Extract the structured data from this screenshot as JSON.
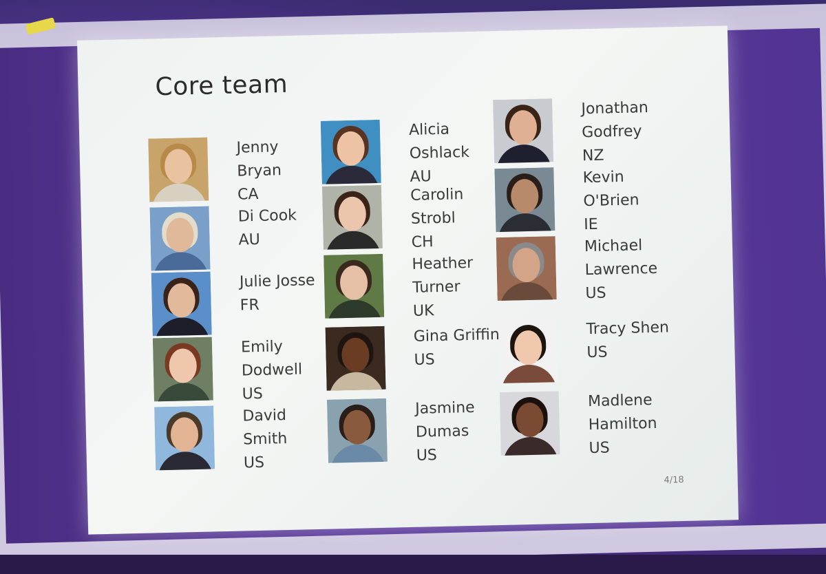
{
  "slide": {
    "title": "Core team",
    "page": "4/18"
  },
  "colors": {
    "slide_bg": "#eef3f2",
    "room": "#4b2f8a",
    "accent": "#e6d84a",
    "text": "#3a3a3a"
  },
  "members": [
    {
      "lines": [
        "Jenny",
        "Bryan",
        "CA"
      ],
      "photo": {
        "bg": "#c9a46a",
        "hair": "#b88a4a",
        "skin": "#e9c2a0",
        "shirt": "#d8d0c0"
      }
    },
    {
      "lines": [
        "Di Cook",
        "AU"
      ],
      "photo": {
        "bg": "#7a9fc8",
        "hair": "#e2dccb",
        "skin": "#e0b89a",
        "shirt": "#4a6a9a"
      }
    },
    {
      "lines": [
        "Julie Josse",
        "FR"
      ],
      "photo": {
        "bg": "#5a8fc9",
        "hair": "#3a2418",
        "skin": "#e3b99c",
        "shirt": "#1e1e2a"
      }
    },
    {
      "lines": [
        "Emily",
        "Dodwell",
        "US"
      ],
      "photo": {
        "bg": "#6f7f64",
        "hair": "#7a3a22",
        "skin": "#efc7ac",
        "shirt": "#3a4a3a"
      }
    },
    {
      "lines": [
        "David",
        "Smith",
        "US"
      ],
      "photo": {
        "bg": "#8fb8dc",
        "hair": "#4a3a2a",
        "skin": "#e2b494",
        "shirt": "#2a2a34"
      }
    },
    {
      "lines": [
        "Alicia",
        "Oshlack",
        "AU"
      ],
      "photo": {
        "bg": "#3f8fc2",
        "hair": "#5a3422",
        "skin": "#eec2a4",
        "shirt": "#2a2a3a"
      }
    },
    {
      "lines": [
        "Carolin",
        "Strobl",
        "CH"
      ],
      "photo": {
        "bg": "#b0b4a8",
        "hair": "#3a2418",
        "skin": "#ecc6ac",
        "shirt": "#2a2a2a"
      }
    },
    {
      "lines": [
        "Heather",
        "Turner",
        "UK"
      ],
      "photo": {
        "bg": "#5f7a44",
        "hair": "#3a2a1e",
        "skin": "#e6c0a6",
        "shirt": "#2e3a2a"
      }
    },
    {
      "lines": [
        "Gina Griffin",
        "US"
      ],
      "photo": {
        "bg": "#3a2a20",
        "hair": "#1e1410",
        "skin": "#6a3c24",
        "shirt": "#c9b8a0"
      }
    },
    {
      "lines": [
        "Jasmine",
        "Dumas",
        "US"
      ],
      "photo": {
        "bg": "#8aa2b0",
        "hair": "#2a1e18",
        "skin": "#8a5a3e",
        "shirt": "#6a8aa8"
      }
    },
    {
      "lines": [
        "Jonathan",
        "Godfrey",
        "NZ"
      ],
      "photo": {
        "bg": "#c8ccd0",
        "hair": "#3a2418",
        "skin": "#e0b094",
        "shirt": "#1e2030"
      }
    },
    {
      "lines": [
        "Kevin",
        "O'Brien",
        "IE"
      ],
      "photo": {
        "bg": "#7a8a94",
        "hair": "#2a1e18",
        "skin": "#b88a6c",
        "shirt": "#2a2e34"
      }
    },
    {
      "lines": [
        "Michael",
        "Lawrence",
        "US"
      ],
      "photo": {
        "bg": "#9a6a52",
        "hair": "#8a8a8a",
        "skin": "#d4a488",
        "shirt": "#6a4a3a"
      }
    },
    {
      "lines": [
        "Tracy Shen",
        "US"
      ],
      "photo": {
        "bg": "#f2f2f2",
        "hair": "#1e140e",
        "skin": "#f0c8ae",
        "shirt": "#7a4a3a"
      }
    },
    {
      "lines": [
        "Madlene",
        "Hamilton",
        "US"
      ],
      "photo": {
        "bg": "#d8d8dc",
        "hair": "#1a100c",
        "skin": "#7a4a32",
        "shirt": "#3a2a2a"
      }
    }
  ]
}
